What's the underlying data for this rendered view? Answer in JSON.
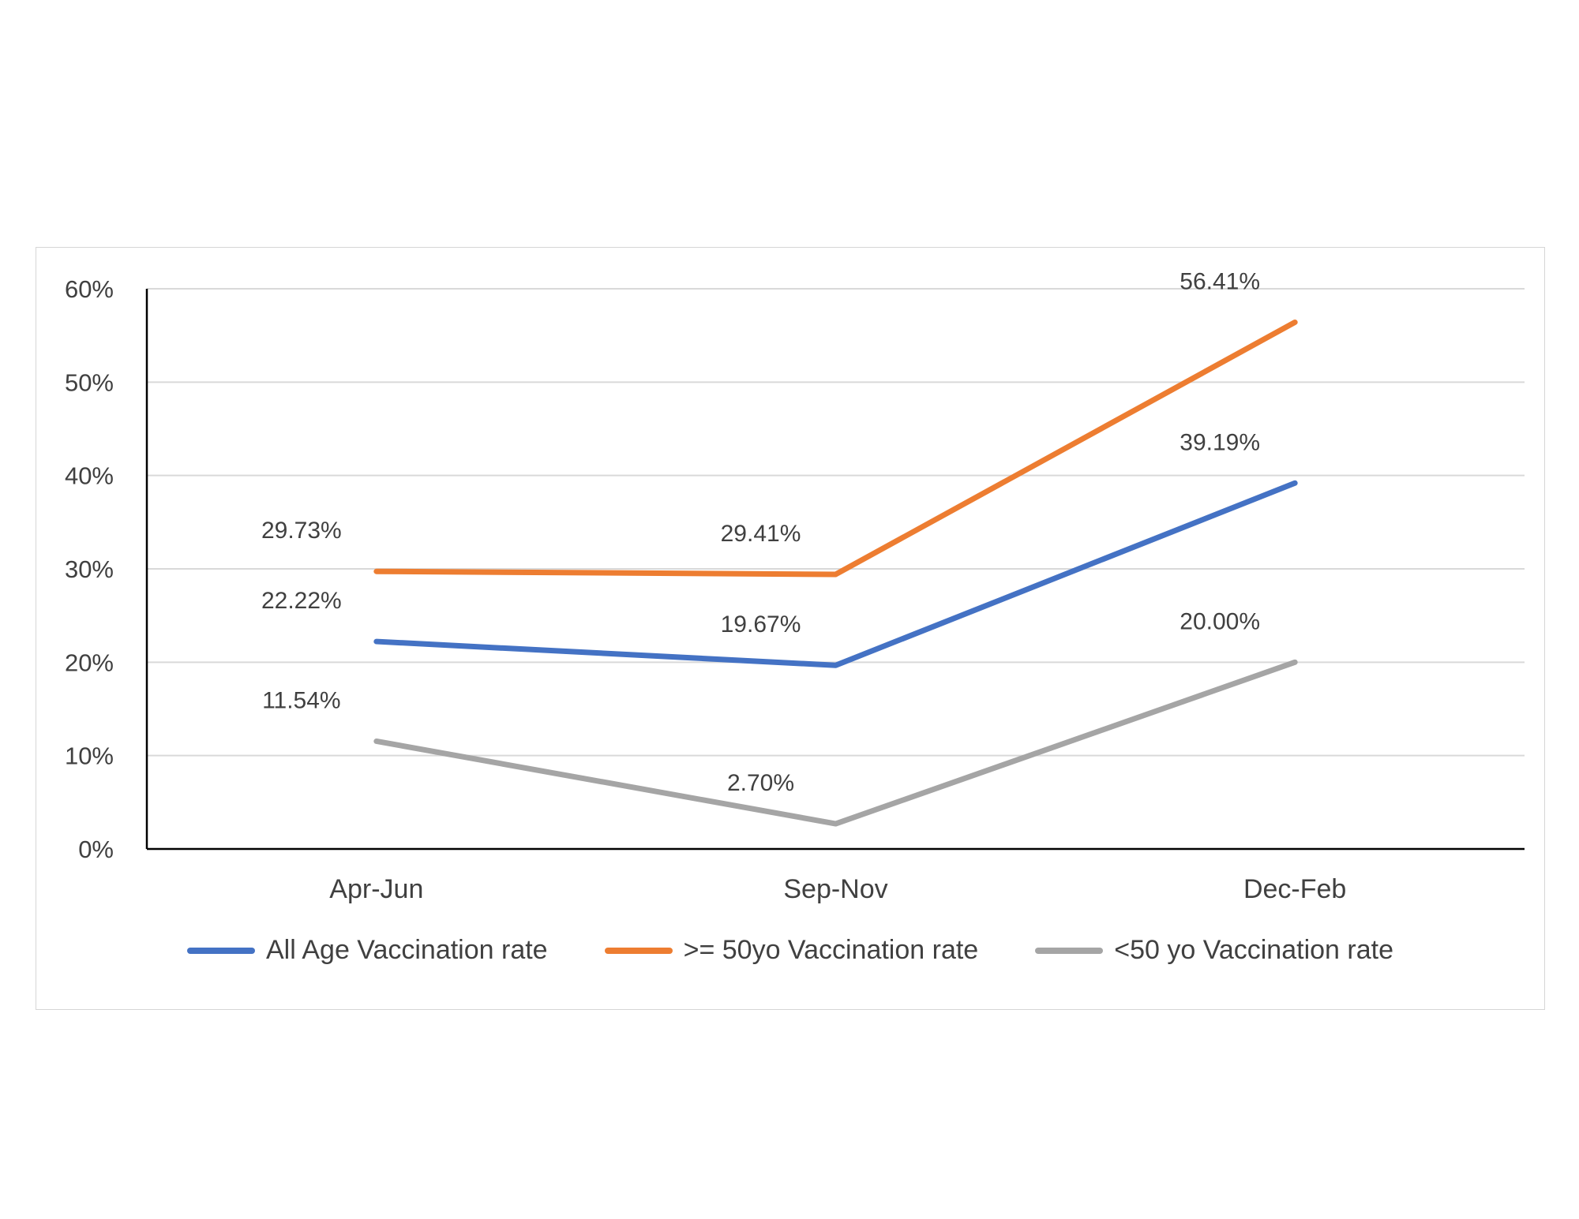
{
  "chart_data": {
    "type": "line",
    "categories": [
      "Apr-Jun",
      "Sep-Nov",
      "Dec-Feb"
    ],
    "series": [
      {
        "name": "All Age Vaccination rate",
        "color": "#4472C4",
        "values": [
          22.22,
          19.67,
          39.19
        ],
        "labels": [
          "22.22%",
          "19.67%",
          "39.19%"
        ]
      },
      {
        "name": ">= 50yo Vaccination rate",
        "color": "#ED7D31",
        "values": [
          29.73,
          29.41,
          56.41
        ],
        "labels": [
          "29.73%",
          "29.41%",
          "56.41%"
        ]
      },
      {
        "name": "<50 yo Vaccination rate",
        "color": "#A5A5A5",
        "values": [
          11.54,
          2.7,
          20.0
        ],
        "labels": [
          "11.54%",
          "2.70%",
          "20.00%"
        ]
      }
    ],
    "y_axis": {
      "min": 0,
      "max": 60,
      "step": 10,
      "tick_labels": [
        "0%",
        "10%",
        "20%",
        "30%",
        "40%",
        "50%",
        "60%"
      ]
    },
    "x_axis_label": "",
    "y_axis_label": "",
    "title": "",
    "grid": true,
    "legend_position": "bottom",
    "colors": {
      "gridline": "#d9d9d9",
      "axis": "#000000",
      "text": "#404040",
      "card_border": "#d6d6d6"
    }
  }
}
